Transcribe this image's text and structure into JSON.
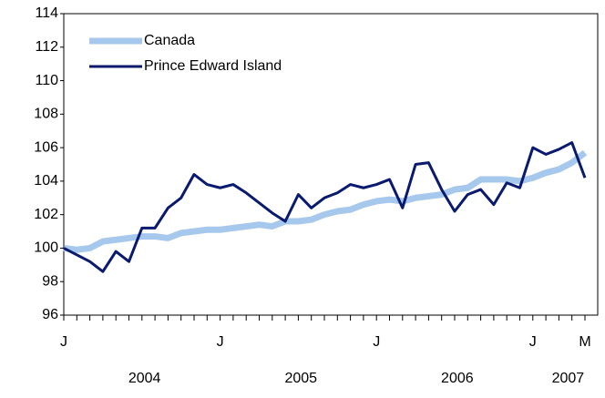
{
  "chart_data": {
    "type": "line",
    "categories": [
      "J",
      null,
      null,
      null,
      null,
      null,
      null,
      null,
      null,
      null,
      null,
      null,
      "J",
      null,
      null,
      null,
      null,
      null,
      null,
      null,
      null,
      null,
      null,
      null,
      "J",
      null,
      null,
      null,
      null,
      null,
      null,
      null,
      null,
      null,
      null,
      null,
      "J",
      null,
      null,
      null,
      "M"
    ],
    "years": [
      "2004",
      "2005",
      "2006",
      "2007"
    ],
    "series": [
      {
        "name": "Canada",
        "color": "#a6c8ec",
        "values": [
          100.0,
          99.9,
          100.0,
          100.4,
          100.5,
          100.6,
          100.7,
          100.7,
          100.6,
          100.9,
          101.0,
          101.1,
          101.1,
          101.2,
          101.3,
          101.4,
          101.3,
          101.6,
          101.6,
          101.7,
          102.0,
          102.2,
          102.3,
          102.6,
          102.8,
          102.9,
          102.8,
          103.0,
          103.1,
          103.2,
          103.5,
          103.6,
          104.1,
          104.1,
          104.1,
          104.0,
          104.2,
          104.5,
          104.7,
          105.1,
          105.7
        ]
      },
      {
        "name": "Prince Edward Island",
        "color": "#0a1a6e",
        "values": [
          100.0,
          99.6,
          99.2,
          98.6,
          99.8,
          99.2,
          101.2,
          101.2,
          102.4,
          103.0,
          104.4,
          103.8,
          103.6,
          103.8,
          103.3,
          102.7,
          102.1,
          101.6,
          103.2,
          102.4,
          103.0,
          103.3,
          103.8,
          103.6,
          103.8,
          104.1,
          102.4,
          105.0,
          105.1,
          103.5,
          102.2,
          103.2,
          103.5,
          102.6,
          103.9,
          103.6,
          106.0,
          105.6,
          105.9,
          106.3,
          104.2
        ]
      }
    ],
    "ylim": [
      96,
      114
    ],
    "yticks": [
      96,
      98,
      100,
      102,
      104,
      106,
      108,
      110,
      112,
      114
    ],
    "grid": false,
    "legend": "top-left"
  }
}
